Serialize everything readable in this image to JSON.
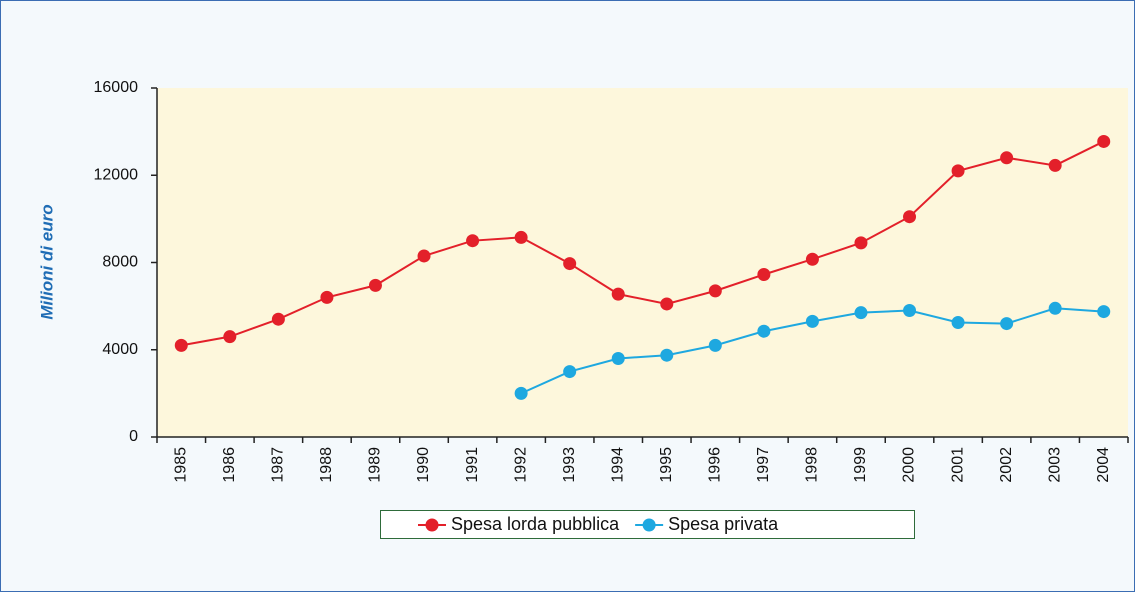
{
  "chart_data": {
    "type": "line",
    "y_label": "Milioni di euro",
    "categories": [
      "1985",
      "1986",
      "1987",
      "1988",
      "1989",
      "1990",
      "1991",
      "1992",
      "1993",
      "1994",
      "1995",
      "1996",
      "1997",
      "1998",
      "1999",
      "2000",
      "2001",
      "2002",
      "2003",
      "2004"
    ],
    "series": [
      {
        "name": "Spesa lorda pubblica",
        "color": "#e3202a",
        "values": [
          4200,
          4600,
          5400,
          6400,
          6950,
          8300,
          9000,
          9150,
          7950,
          6550,
          6100,
          6700,
          7450,
          8150,
          8900,
          10100,
          12200,
          12800,
          12450,
          13550
        ]
      },
      {
        "name": "Spesa privata",
        "color": "#1ea8e0",
        "values": [
          null,
          null,
          null,
          null,
          null,
          null,
          null,
          2000,
          3000,
          3600,
          3750,
          4200,
          4850,
          5300,
          5700,
          5800,
          5250,
          5200,
          5900,
          5750
        ]
      }
    ],
    "ylim": [
      0,
      16000
    ],
    "yticks": [
      0,
      4000,
      8000,
      12000,
      16000
    ],
    "grid": false,
    "legend": "bottom",
    "plot_background": "#fdf7dc"
  }
}
